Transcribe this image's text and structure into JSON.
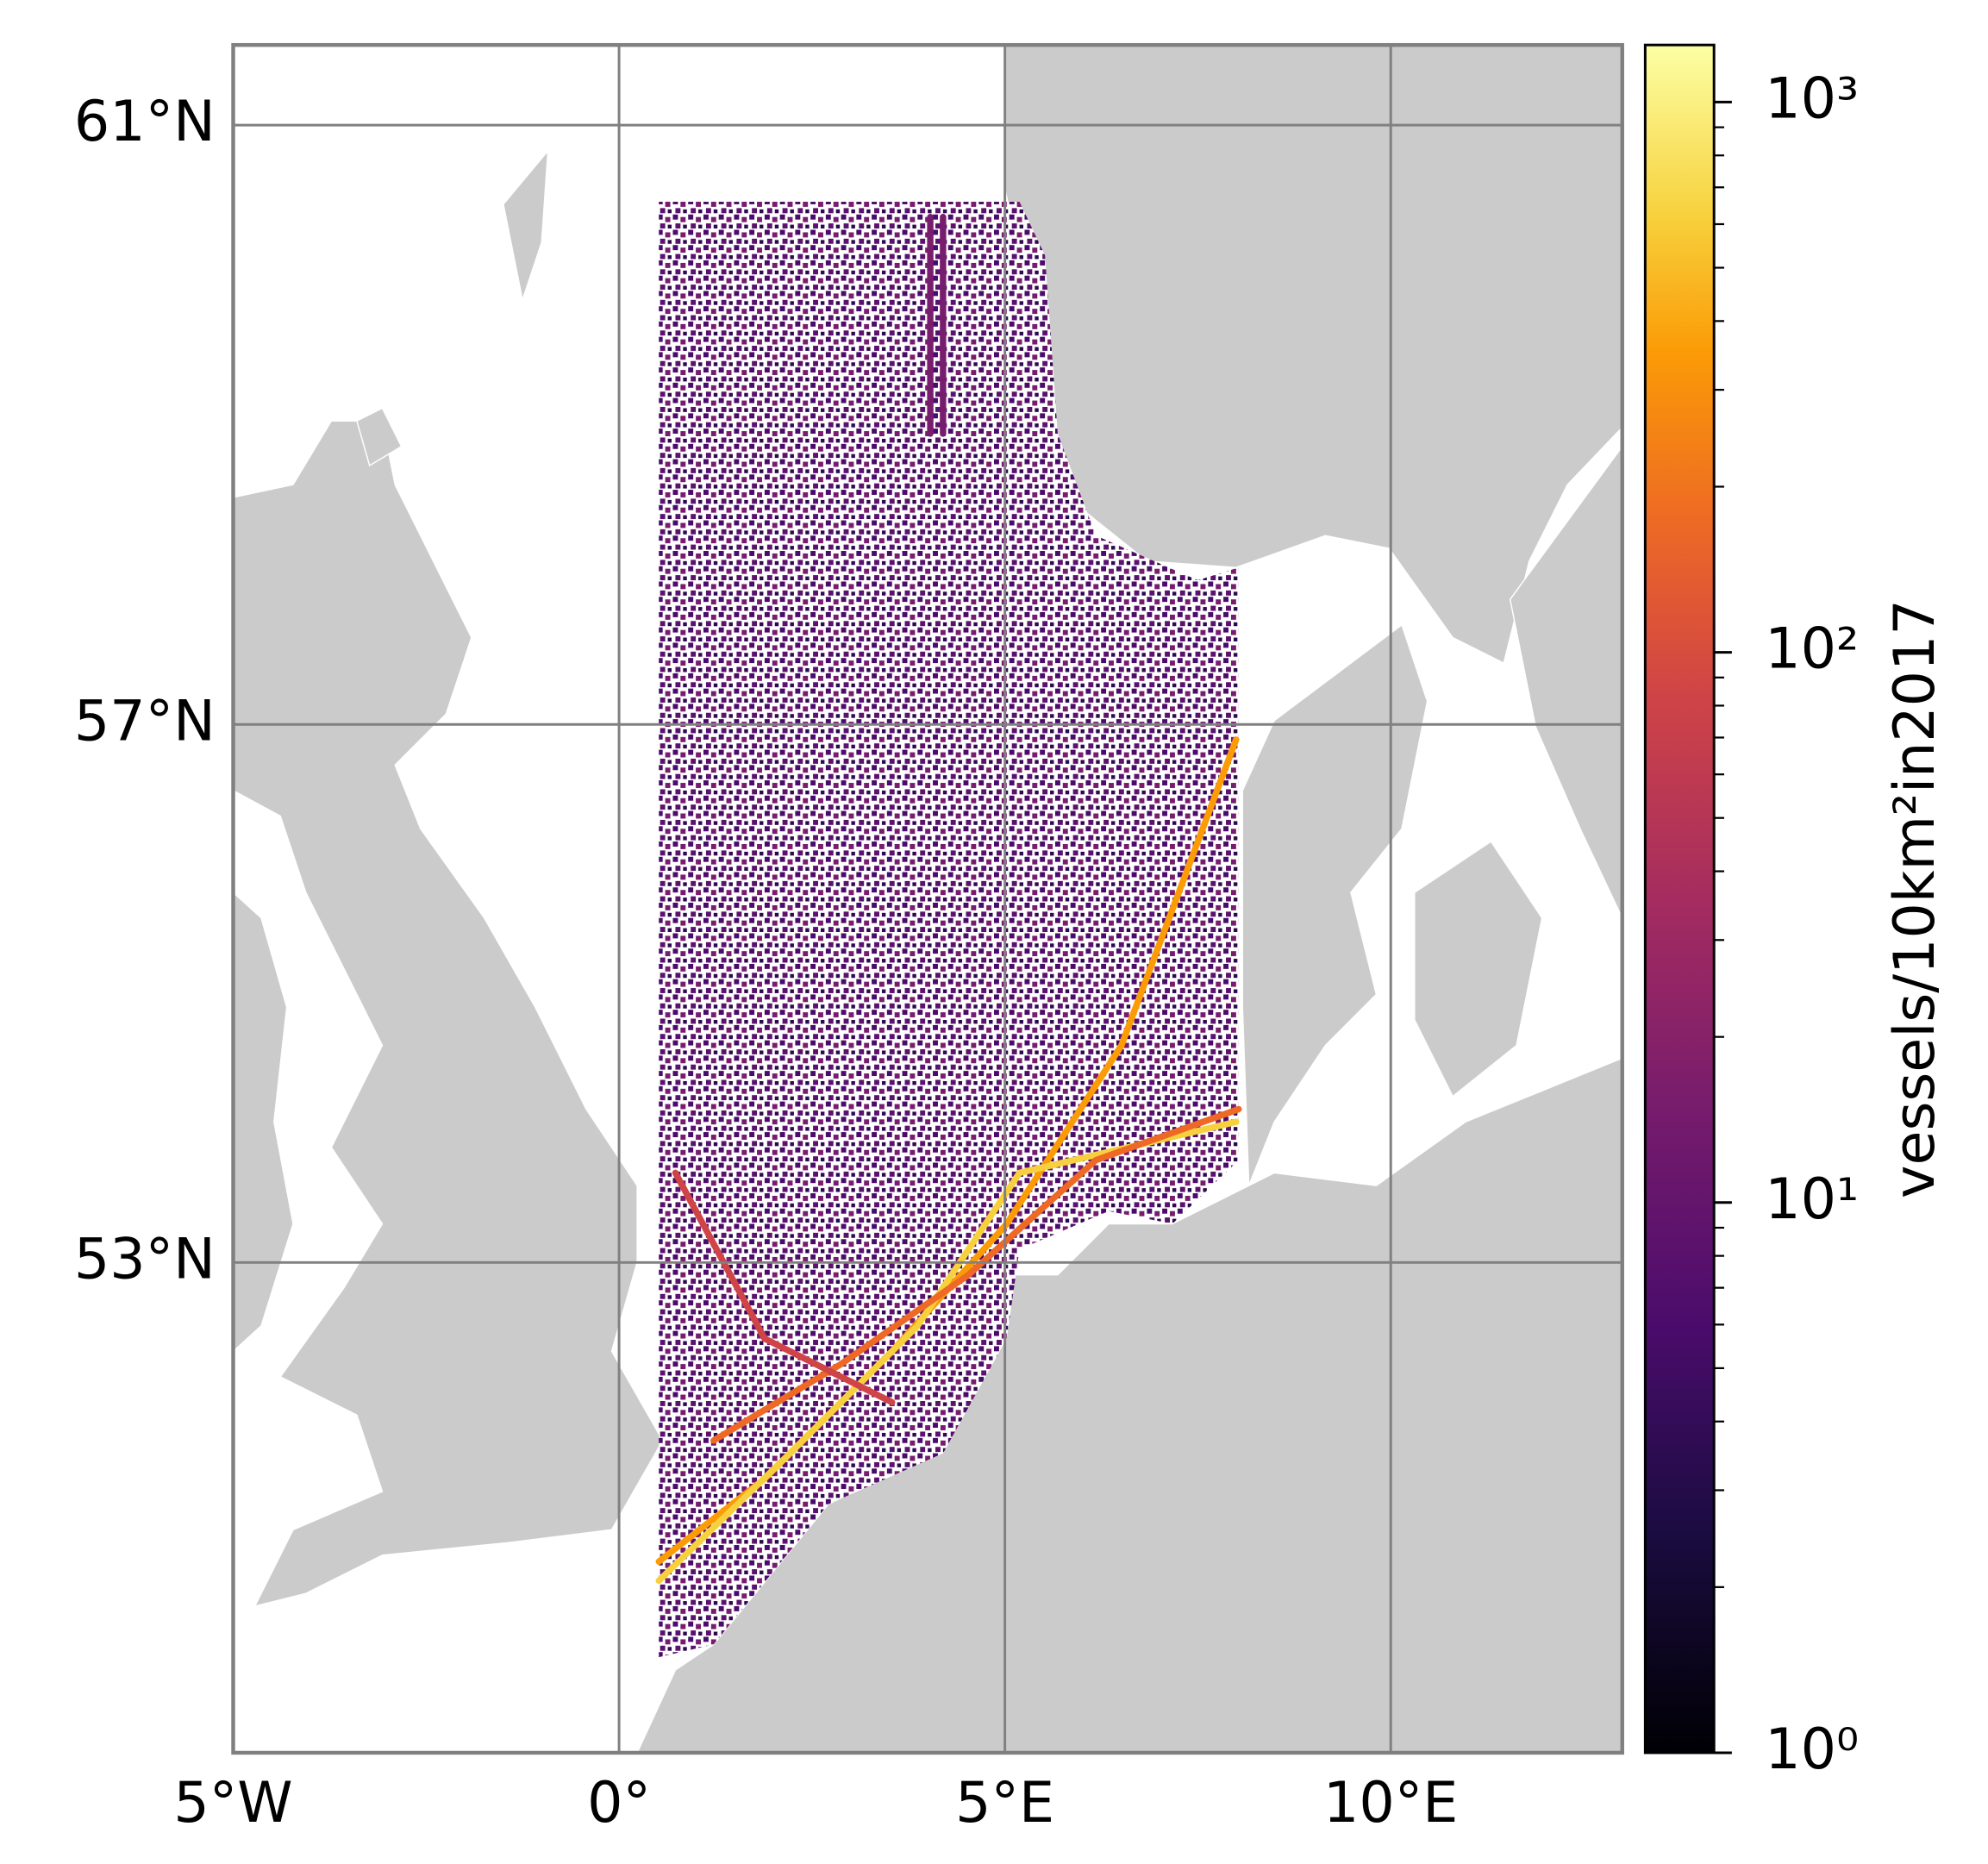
{
  "chart_data": {
    "type": "map",
    "xlim": [
      -5,
      13
    ],
    "ylim": [
      49,
      61.5
    ],
    "xticks": [
      {
        "value": -5,
        "label": "5°W"
      },
      {
        "value": 0,
        "label": "0°"
      },
      {
        "value": 5,
        "label": "5°E"
      },
      {
        "value": 10,
        "label": "10°E"
      }
    ],
    "yticks": [
      {
        "value": 53,
        "label": "53°N"
      },
      {
        "value": 57,
        "label": "57°N"
      },
      {
        "value": 61,
        "label": "61°N"
      }
    ],
    "grid": true,
    "colorbar": {
      "label": "vessels/10km²in2017",
      "log": true,
      "clim": [
        1,
        1270
      ],
      "cmap": "inferno",
      "ticks": [
        {
          "value": 1,
          "label": "10⁰"
        },
        {
          "value": 10,
          "label": "10¹"
        },
        {
          "value": 100,
          "label": "10²"
        },
        {
          "value": 1000,
          "label": "10³"
        }
      ]
    }
  }
}
